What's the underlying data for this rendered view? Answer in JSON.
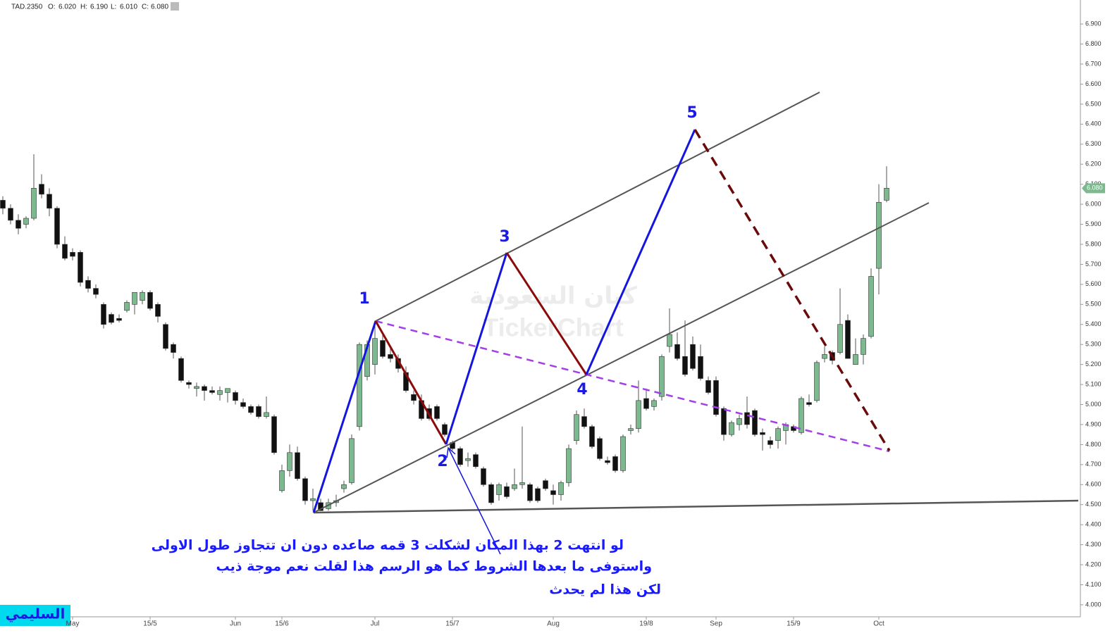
{
  "header": {
    "symbol": "TAD.2350",
    "ohlc": [
      {
        "label": "O:",
        "value": "6.020"
      },
      {
        "label": "H:",
        "value": "6.190"
      },
      {
        "label": "L:",
        "value": "6.010"
      },
      {
        "label": "C:",
        "value": "6.080"
      }
    ]
  },
  "annotations": {
    "waves": [
      "1",
      "2",
      "3",
      "4",
      "5"
    ],
    "note": [
      "لو انتهت 2 بهذا المكان لشكلت 3 قمه صاعده دون ان تتجاوز طول الاولى",
      "واستوفى ما بعدها الشروط كما هو الرسم هذا لقلت نعم موجة ذيب",
      "لكن هذا لم يحدث"
    ],
    "watermark": [
      "كيان السعودية",
      "TickerChart"
    ],
    "badge": "السليمي"
  },
  "chart_data": {
    "type": "candlestick",
    "up_color": "#7cb98f",
    "down_color": "#111111",
    "categories": [
      null,
      null,
      null,
      null,
      null,
      null,
      null,
      null,
      null,
      "May",
      null,
      null,
      null,
      null,
      null,
      null,
      null,
      null,
      null,
      "15/5",
      null,
      null,
      null,
      null,
      null,
      null,
      null,
      null,
      null,
      null,
      "Jun",
      null,
      null,
      null,
      null,
      null,
      "15/6",
      null,
      null,
      null,
      null,
      null,
      null,
      null,
      null,
      null,
      null,
      null,
      "Jul",
      null,
      null,
      null,
      null,
      null,
      null,
      null,
      null,
      null,
      "15/7",
      null,
      null,
      null,
      null,
      null,
      null,
      null,
      null,
      null,
      null,
      null,
      null,
      "Aug",
      null,
      null,
      null,
      null,
      null,
      null,
      null,
      null,
      null,
      null,
      null,
      "19/8",
      null,
      null,
      null,
      null,
      null,
      null,
      null,
      null,
      "Sep",
      null,
      null,
      null,
      null,
      null,
      null,
      null,
      null,
      null,
      "15/9",
      null,
      null,
      null,
      null,
      null,
      null,
      null,
      null,
      null,
      null,
      "Oct",
      null
    ],
    "open": [
      6.02,
      5.98,
      5.92,
      5.9,
      5.93,
      6.1,
      6.05,
      5.98,
      5.8,
      5.76,
      5.76,
      5.62,
      5.58,
      5.5,
      5.45,
      5.43,
      5.47,
      5.5,
      5.52,
      5.56,
      5.5,
      5.4,
      5.3,
      5.23,
      5.11,
      5.08,
      5.09,
      5.07,
      5.05,
      5.06,
      5.06,
      5.01,
      4.99,
      4.99,
      4.94,
      4.94,
      4.57,
      4.67,
      4.76,
      4.63,
      4.52,
      4.51,
      4.48,
      4.51,
      4.58,
      4.61,
      4.89,
      5.14,
      5.2,
      5.32,
      5.25,
      5.23,
      5.16,
      5.05,
      5.02,
      4.98,
      4.99,
      4.9,
      4.81,
      4.78,
      4.72,
      4.75,
      4.68,
      4.6,
      4.55,
      4.59,
      4.58,
      4.6,
      4.6,
      4.58,
      4.62,
      4.57,
      4.55,
      4.61,
      4.82,
      4.94,
      4.89,
      4.83,
      4.72,
      4.74,
      4.67,
      4.87,
      4.88,
      5.03,
      4.99,
      5.04,
      5.29,
      5.3,
      5.24,
      5.3,
      5.24,
      5.12,
      5.12,
      4.98,
      4.85,
      4.9,
      4.96,
      4.97,
      4.86,
      4.82,
      4.82,
      4.87,
      4.89,
      4.86,
      5.01,
      5.02,
      5.23,
      5.26,
      5.26,
      5.42,
      5.2,
      5.25,
      5.34,
      5.68,
      6.02
    ],
    "high": [
      6.04,
      6.0,
      5.95,
      5.94,
      6.25,
      6.15,
      6.08,
      5.99,
      5.84,
      5.78,
      5.77,
      5.64,
      5.6,
      5.51,
      5.46,
      5.45,
      5.52,
      5.56,
      5.57,
      5.57,
      5.51,
      5.41,
      5.31,
      5.24,
      5.12,
      5.11,
      5.1,
      5.09,
      5.09,
      5.08,
      5.07,
      5.03,
      5.0,
      5.0,
      5.04,
      4.95,
      4.7,
      4.8,
      4.79,
      4.64,
      4.58,
      4.53,
      4.53,
      4.55,
      4.62,
      4.85,
      5.31,
      5.32,
      5.42,
      5.36,
      5.28,
      5.25,
      5.19,
      5.07,
      5.05,
      5.0,
      5.0,
      4.91,
      4.82,
      4.79,
      4.76,
      4.76,
      4.69,
      4.61,
      4.61,
      4.61,
      4.68,
      4.89,
      4.61,
      4.59,
      4.63,
      4.6,
      4.62,
      4.8,
      4.97,
      4.98,
      4.9,
      4.84,
      4.74,
      4.75,
      4.85,
      4.9,
      5.12,
      5.08,
      5.03,
      5.25,
      5.48,
      5.36,
      5.42,
      5.34,
      5.3,
      5.14,
      5.14,
      4.99,
      4.92,
      4.95,
      5.04,
      4.98,
      4.88,
      4.84,
      4.89,
      4.91,
      4.9,
      5.04,
      5.05,
      5.22,
      5.29,
      5.27,
      5.58,
      5.45,
      5.33,
      5.35,
      5.68,
      6.1,
      6.19
    ],
    "low": [
      5.95,
      5.9,
      5.85,
      5.88,
      5.92,
      6.03,
      5.94,
      5.78,
      5.72,
      5.72,
      5.59,
      5.56,
      5.53,
      5.38,
      5.4,
      5.41,
      5.46,
      5.45,
      5.5,
      5.47,
      5.41,
      5.27,
      5.23,
      5.11,
      5.08,
      5.04,
      5.02,
      5.05,
      5.02,
      5.01,
      5.0,
      4.98,
      4.95,
      4.93,
      4.93,
      4.75,
      4.56,
      4.64,
      4.62,
      4.5,
      4.47,
      4.47,
      4.47,
      4.49,
      4.56,
      4.6,
      4.87,
      5.12,
      5.15,
      5.23,
      5.21,
      5.16,
      5.06,
      5.0,
      4.92,
      4.92,
      4.92,
      4.84,
      4.77,
      4.69,
      4.69,
      4.68,
      4.59,
      4.5,
      4.52,
      4.53,
      4.57,
      4.58,
      4.51,
      4.51,
      4.57,
      4.5,
      4.52,
      4.59,
      4.8,
      4.88,
      4.78,
      4.72,
      4.7,
      4.66,
      4.66,
      4.85,
      4.86,
      4.97,
      4.97,
      5.02,
      5.26,
      5.22,
      5.14,
      5.17,
      5.12,
      5.05,
      4.94,
      4.82,
      4.84,
      4.87,
      4.88,
      4.84,
      4.77,
      4.78,
      4.78,
      4.8,
      4.86,
      4.85,
      4.99,
      5.01,
      5.21,
      5.2,
      5.25,
      5.23,
      5.2,
      5.2,
      5.33,
      5.55,
      6.01
    ],
    "close": [
      5.98,
      5.92,
      5.88,
      5.93,
      6.08,
      6.05,
      5.98,
      5.8,
      5.73,
      5.74,
      5.61,
      5.58,
      5.55,
      5.4,
      5.41,
      5.42,
      5.51,
      5.56,
      5.56,
      5.48,
      5.44,
      5.28,
      5.26,
      5.12,
      5.1,
      5.09,
      5.07,
      5.06,
      5.07,
      5.08,
      5.02,
      4.99,
      4.96,
      4.94,
      4.96,
      4.76,
      4.67,
      4.76,
      4.63,
      4.52,
      4.53,
      4.47,
      4.51,
      4.52,
      4.6,
      4.83,
      5.3,
      5.3,
      5.33,
      5.24,
      5.23,
      5.18,
      5.07,
      5.02,
      4.93,
      4.93,
      4.93,
      4.85,
      4.78,
      4.7,
      4.73,
      4.69,
      4.6,
      4.51,
      4.6,
      4.54,
      4.6,
      4.61,
      4.52,
      4.52,
      4.58,
      4.55,
      4.61,
      4.78,
      4.95,
      4.89,
      4.79,
      4.73,
      4.71,
      4.67,
      4.84,
      4.88,
      5.02,
      4.98,
      5.02,
      5.24,
      5.35,
      5.23,
      5.15,
      5.18,
      5.13,
      5.06,
      4.95,
      4.85,
      4.91,
      4.93,
      4.9,
      4.85,
      4.85,
      4.8,
      4.88,
      4.9,
      4.87,
      5.03,
      5.0,
      5.21,
      5.25,
      5.22,
      5.4,
      5.23,
      5.25,
      5.33,
      5.64,
      6.01,
      6.08
    ],
    "ylim": [
      3.94,
      7.02
    ],
    "yticks": [
      {
        "value": 4,
        "label": "4.000"
      },
      {
        "value": 4.1,
        "label": "4.100"
      },
      {
        "value": 4.2,
        "label": "4.200"
      },
      {
        "value": 4.3,
        "label": "4.300"
      },
      {
        "value": 4.4,
        "label": "4.400"
      },
      {
        "value": 4.5,
        "label": "4.500"
      },
      {
        "value": 4.6,
        "label": "4.600"
      },
      {
        "value": 4.7,
        "label": "4.700"
      },
      {
        "value": 4.8,
        "label": "4.800"
      },
      {
        "value": 4.9,
        "label": "4.900"
      },
      {
        "value": 5,
        "label": "5.000"
      },
      {
        "value": 5.1,
        "label": "5.100"
      },
      {
        "value": 5.2,
        "label": "5.200"
      },
      {
        "value": 5.3,
        "label": "5.300"
      },
      {
        "value": 5.4,
        "label": "5.400"
      },
      {
        "value": 5.5,
        "label": "5.500"
      },
      {
        "value": 5.6,
        "label": "5.600"
      },
      {
        "value": 5.7,
        "label": "5.700"
      },
      {
        "value": 5.8,
        "label": "5.800"
      },
      {
        "value": 5.9,
        "label": "5.900"
      },
      {
        "value": 6,
        "label": "6.000"
      },
      {
        "value": 6.1,
        "label": "6.100"
      },
      {
        "value": 6.2,
        "label": "6.200"
      },
      {
        "value": 6.3,
        "label": "6.300"
      },
      {
        "value": 6.4,
        "label": "6.400"
      },
      {
        "value": 6.5,
        "label": "6.500"
      },
      {
        "value": 6.6,
        "label": "6.600"
      },
      {
        "value": 6.7,
        "label": "6.700"
      },
      {
        "value": 6.8,
        "label": "6.800"
      },
      {
        "value": 6.9,
        "label": "6.900"
      }
    ],
    "grid": false
  }
}
